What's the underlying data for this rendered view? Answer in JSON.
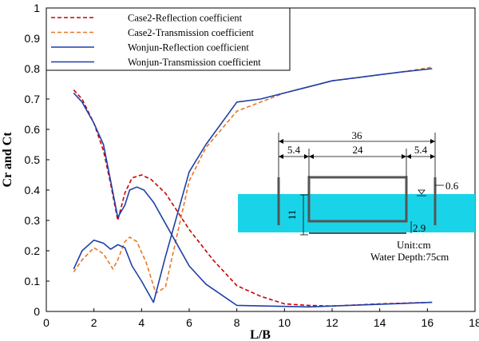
{
  "chart_data": {
    "type": "line",
    "xlabel": "L/B",
    "ylabel": "Cr and Ct",
    "xlim": [
      0,
      18
    ],
    "ylim": [
      0,
      1
    ],
    "xticks": [
      "0",
      "2",
      "4",
      "6",
      "8",
      "10",
      "12",
      "14",
      "16",
      "18"
    ],
    "yticks": [
      "0",
      "0.1",
      "0.2",
      "0.3",
      "0.4",
      "0.5",
      "0.6",
      "0.7",
      "0.8",
      "0.9",
      "1"
    ],
    "legend_position": "top-left",
    "series": [
      {
        "name": "Case2-Reflection coefficient",
        "color": "#cc0000",
        "dashed": true,
        "x": [
          1.15,
          1.5,
          2.0,
          2.4,
          2.7,
          3.0,
          3.3,
          3.6,
          4.0,
          4.4,
          5.0,
          6.0,
          7.0,
          8.0,
          9.0,
          10.0,
          11.0,
          12.0,
          14.0,
          16.2
        ],
        "y": [
          0.73,
          0.7,
          0.62,
          0.53,
          0.42,
          0.3,
          0.39,
          0.44,
          0.45,
          0.435,
          0.39,
          0.27,
          0.17,
          0.085,
          0.05,
          0.025,
          0.02,
          0.018,
          0.025,
          0.03
        ]
      },
      {
        "name": "Case2-Transmission coefficient",
        "color": "#e87722",
        "dashed": true,
        "x": [
          1.15,
          1.5,
          2.0,
          2.4,
          2.8,
          3.0,
          3.3,
          3.5,
          3.8,
          4.2,
          4.6,
          5.0,
          6.0,
          6.7,
          8.0,
          9.0,
          10.0,
          11.0,
          12.0,
          13.0,
          14.0,
          15.0,
          16.2
        ],
        "y": [
          0.13,
          0.17,
          0.21,
          0.19,
          0.14,
          0.17,
          0.23,
          0.245,
          0.23,
          0.16,
          0.06,
          0.08,
          0.43,
          0.54,
          0.66,
          0.69,
          0.72,
          0.74,
          0.76,
          0.77,
          0.78,
          0.79,
          0.805
        ]
      },
      {
        "name": "Wonjun-Reflection coefficient",
        "color": "#1f3fa8",
        "dashed": false,
        "x": [
          1.15,
          1.5,
          2.0,
          2.4,
          2.7,
          3.0,
          3.3,
          3.5,
          3.8,
          4.1,
          4.5,
          5.0,
          6.0,
          6.7,
          8.0,
          11.0,
          16.2
        ],
        "y": [
          0.72,
          0.69,
          0.62,
          0.55,
          0.43,
          0.31,
          0.35,
          0.4,
          0.41,
          0.4,
          0.36,
          0.29,
          0.15,
          0.09,
          0.02,
          0.015,
          0.03
        ]
      },
      {
        "name": "Wonjun-Transmission coefficient",
        "color": "#1f3fa8",
        "dashed": false,
        "x": [
          1.15,
          1.5,
          2.0,
          2.4,
          2.7,
          3.0,
          3.3,
          3.6,
          4.0,
          4.5,
          5.0,
          6.0,
          6.7,
          8.0,
          9.0,
          10.0,
          11.0,
          12.0,
          13.0,
          14.0,
          15.0,
          16.2
        ],
        "y": [
          0.14,
          0.2,
          0.235,
          0.225,
          0.205,
          0.22,
          0.21,
          0.15,
          0.1,
          0.03,
          0.18,
          0.46,
          0.55,
          0.69,
          0.7,
          0.72,
          0.74,
          0.76,
          0.77,
          0.78,
          0.79,
          0.8
        ]
      }
    ],
    "inset": {
      "total_width": "36",
      "left_gap": "5.4",
      "box_width": "24",
      "right_gap": "5.4",
      "freeboard": "0.6",
      "draft": "11",
      "clearance": "2.9",
      "unit_text": "Unit:cm",
      "depth_text": "Water Depth:75cm",
      "water_color": "#19d4e8"
    }
  }
}
